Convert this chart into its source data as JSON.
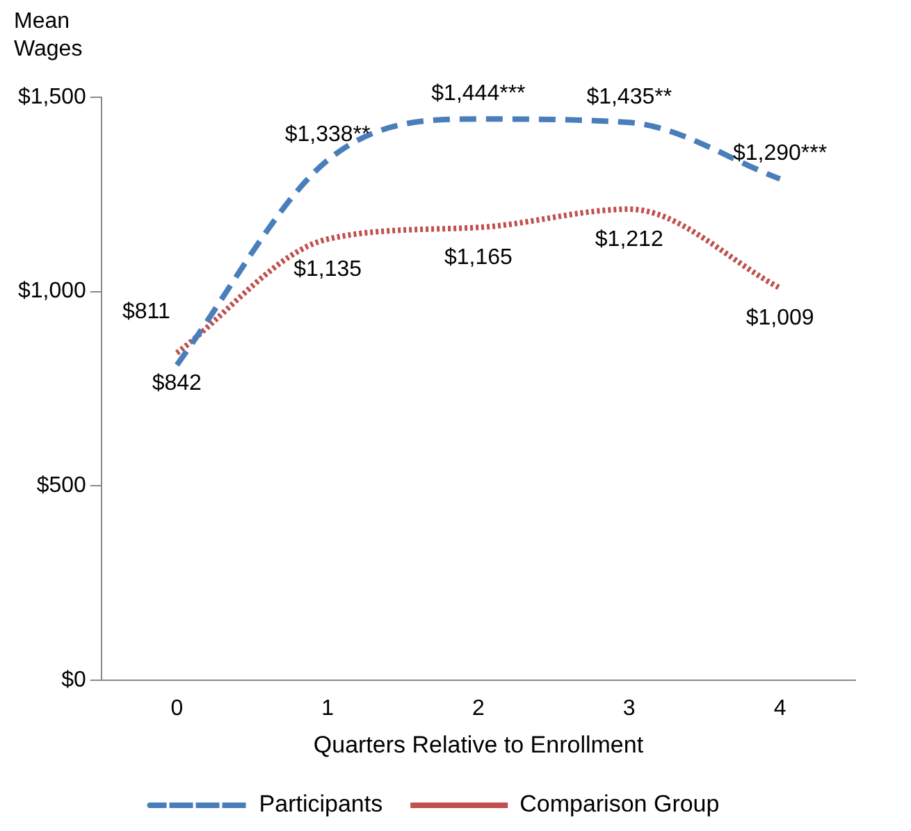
{
  "chart_data": {
    "type": "line",
    "ylabel": "Mean Wages",
    "xlabel": "Quarters Relative to Enrollment",
    "categories": [
      "0",
      "1",
      "2",
      "3",
      "4"
    ],
    "ylim": [
      0,
      1500
    ],
    "yticks": [
      {
        "value": 0,
        "label": "$0"
      },
      {
        "value": 500,
        "label": "$500"
      },
      {
        "value": 1000,
        "label": "$1,000"
      },
      {
        "value": 1500,
        "label": "$1,500"
      }
    ],
    "grid": false,
    "legend": "bottom",
    "marker": "none",
    "series": [
      {
        "name": "Participants",
        "color": "#4a7ebb",
        "line_style": "dashed",
        "values": [
          811,
          1338,
          1444,
          1435,
          1290
        ],
        "value_labels": [
          "$811",
          "$1,338**",
          "$1,444***",
          "$1,435**",
          "$1,290***"
        ]
      },
      {
        "name": "Comparison Group",
        "color": "#c0504d",
        "line_style": "dotted",
        "values": [
          842,
          1135,
          1165,
          1212,
          1009
        ],
        "value_labels": [
          "$842",
          "$1,135",
          "$1,165",
          "$1,212",
          "$1,009"
        ]
      }
    ]
  }
}
